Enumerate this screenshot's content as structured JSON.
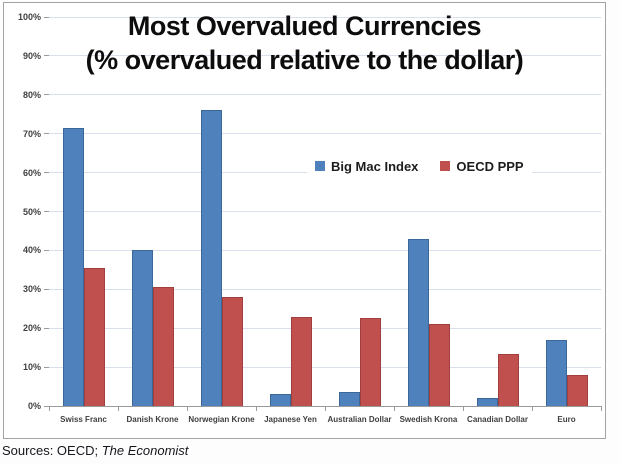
{
  "chart_data": {
    "type": "bar",
    "title": "Most Overvalued Currencies",
    "subtitle": "(% overvalued relative to the dollar)",
    "categories": [
      "Swiss Franc",
      "Danish Krone",
      "Norwegian Krone",
      "Japanese Yen",
      "Australian Dollar",
      "Swedish Krona",
      "Canadian Dollar",
      "Euro"
    ],
    "series": [
      {
        "name": "Big Mac Index",
        "color": "#4f81bd",
        "values": [
          71.5,
          40,
          76,
          3,
          3.5,
          43,
          2,
          17
        ]
      },
      {
        "name": "OECD PPP",
        "color": "#c0504d",
        "values": [
          35.5,
          30.5,
          28,
          23,
          22.5,
          21,
          13.5,
          8
        ]
      }
    ],
    "ylim": [
      0,
      100
    ],
    "ytick_step": 10,
    "ytick_labels": [
      "0%",
      "10%",
      "20%",
      "30%",
      "40%",
      "50%",
      "60%",
      "70%",
      "80%",
      "90%",
      "100%"
    ],
    "grid": "horizontal",
    "legend_position": "inside-right-middle"
  },
  "footer": {
    "sources_prefix": "Sources: OECD; ",
    "sources_italic": "The Economist"
  }
}
